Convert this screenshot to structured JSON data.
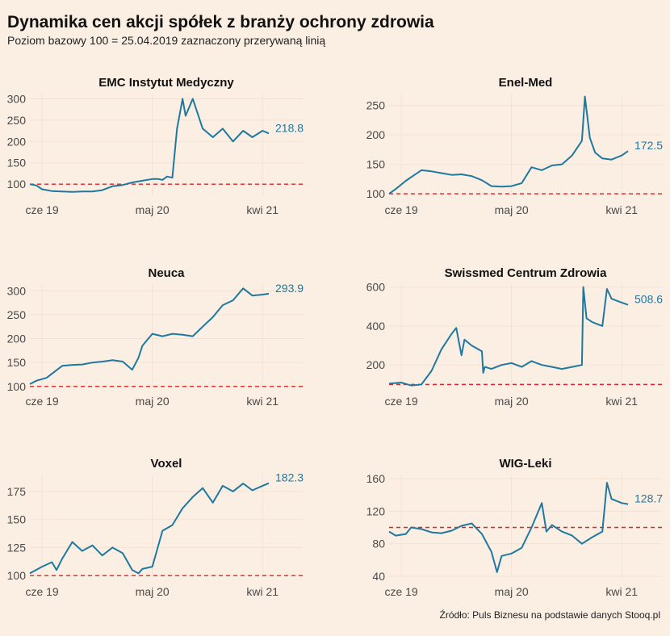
{
  "title": "Dynamika cen akcji spółek z branży ochrony zdrowia",
  "subtitle": "Poziom bazowy 100 = 25.04.2019 zaznaczony przerywaną linią",
  "source": "Źródło: Puls Biznesu na podstawie danych Stooq.pl",
  "colors": {
    "background": "#fbeee2",
    "line": "#1f78a0",
    "baseline": "#d9252b",
    "grid": "#f3e3d4"
  },
  "chart_data": [
    {
      "type": "line",
      "title": "EMC Instytut Medyczny",
      "x_ticks": [
        "cze 19",
        "maj 20",
        "kwi 21"
      ],
      "x_tick_positions": [
        "2019-06-01",
        "2020-05-01",
        "2021-04-01"
      ],
      "xlim": [
        "2019-04-25",
        "2021-08-01"
      ],
      "y_ticks": [
        100,
        150,
        200,
        250,
        300
      ],
      "ylim": [
        72,
        312
      ],
      "baseline": 100,
      "end_label": "218.8",
      "series": [
        {
          "x": [
            "2019-04-25",
            "2019-05-15",
            "2019-06-01",
            "2019-07-01",
            "2019-08-01",
            "2019-09-01",
            "2019-10-01",
            "2019-11-01",
            "2019-12-01",
            "2020-01-01",
            "2020-02-01",
            "2020-03-01",
            "2020-04-01",
            "2020-05-01",
            "2020-05-20",
            "2020-06-01",
            "2020-06-15",
            "2020-07-01",
            "2020-07-15",
            "2020-08-01",
            "2020-08-10",
            "2020-09-01",
            "2020-10-01",
            "2020-11-01",
            "2020-12-01",
            "2021-01-01",
            "2021-02-01",
            "2021-03-01",
            "2021-04-01",
            "2021-04-20"
          ],
          "y": [
            100,
            97,
            88,
            84,
            83,
            82,
            83,
            83,
            86,
            95,
            98,
            104,
            108,
            112,
            112,
            110,
            118,
            115,
            230,
            300,
            260,
            300,
            230,
            210,
            230,
            200,
            225,
            210,
            225,
            218.8
          ]
        }
      ]
    },
    {
      "type": "line",
      "title": "Enel-Med",
      "x_ticks": [
        "cze 19",
        "maj 20",
        "kwi 21"
      ],
      "x_tick_positions": [
        "2019-06-01",
        "2020-05-01",
        "2021-04-01"
      ],
      "xlim": [
        "2019-04-25",
        "2021-08-01"
      ],
      "y_ticks": [
        100,
        150,
        200,
        250
      ],
      "ylim": [
        96,
        270
      ],
      "baseline": 100,
      "end_label": "172.5",
      "series": [
        {
          "x": [
            "2019-04-25",
            "2019-05-15",
            "2019-06-15",
            "2019-08-01",
            "2019-09-01",
            "2019-10-01",
            "2019-11-01",
            "2019-12-01",
            "2020-01-01",
            "2020-02-01",
            "2020-03-01",
            "2020-04-01",
            "2020-05-01",
            "2020-06-01",
            "2020-07-01",
            "2020-08-01",
            "2020-09-01",
            "2020-10-01",
            "2020-11-01",
            "2020-12-01",
            "2020-12-10",
            "2020-12-25",
            "2021-01-10",
            "2021-02-01",
            "2021-03-01",
            "2021-04-01",
            "2021-04-20"
          ],
          "y": [
            100,
            108,
            122,
            140,
            138,
            135,
            132,
            133,
            130,
            123,
            113,
            112,
            113,
            118,
            145,
            140,
            148,
            150,
            165,
            190,
            265,
            195,
            170,
            160,
            158,
            165,
            172.5
          ]
        }
      ]
    },
    {
      "type": "line",
      "title": "Neuca",
      "x_ticks": [
        "cze 19",
        "maj 20",
        "kwi 21"
      ],
      "x_tick_positions": [
        "2019-06-01",
        "2020-05-01",
        "2021-04-01"
      ],
      "xlim": [
        "2019-04-25",
        "2021-08-01"
      ],
      "y_ticks": [
        100,
        150,
        200,
        250,
        300
      ],
      "ylim": [
        98,
        314
      ],
      "baseline": 100,
      "end_label": "293.9",
      "series": [
        {
          "x": [
            "2019-04-25",
            "2019-05-15",
            "2019-06-15",
            "2019-08-01",
            "2019-09-01",
            "2019-10-01",
            "2019-11-01",
            "2019-12-01",
            "2020-01-01",
            "2020-02-01",
            "2020-03-01",
            "2020-03-20",
            "2020-04-01",
            "2020-05-01",
            "2020-06-01",
            "2020-07-01",
            "2020-08-01",
            "2020-09-01",
            "2020-10-01",
            "2020-11-01",
            "2020-12-01",
            "2021-01-01",
            "2021-02-01",
            "2021-03-01",
            "2021-04-01",
            "2021-04-20"
          ],
          "y": [
            105,
            112,
            118,
            143,
            145,
            146,
            150,
            152,
            155,
            152,
            135,
            160,
            185,
            210,
            205,
            210,
            208,
            205,
            225,
            245,
            270,
            280,
            305,
            290,
            292,
            293.9
          ]
        }
      ]
    },
    {
      "type": "line",
      "title": "Swissmed Centrum Zdrowia",
      "x_ticks": [
        "cze 19",
        "maj 20",
        "kwi 21"
      ],
      "x_tick_positions": [
        "2019-06-01",
        "2020-05-01",
        "2021-04-01"
      ],
      "xlim": [
        "2019-04-25",
        "2021-08-01"
      ],
      "y_ticks": [
        200,
        400,
        600
      ],
      "ylim": [
        85,
        615
      ],
      "baseline": 100,
      "end_label": "508.6",
      "series": [
        {
          "x": [
            "2019-04-25",
            "2019-06-01",
            "2019-07-01",
            "2019-08-01",
            "2019-09-01",
            "2019-10-01",
            "2019-11-01",
            "2019-11-15",
            "2019-12-01",
            "2019-12-10",
            "2020-01-01",
            "2020-02-01",
            "2020-02-05",
            "2020-02-10",
            "2020-03-01",
            "2020-04-01",
            "2020-05-01",
            "2020-06-01",
            "2020-07-01",
            "2020-08-01",
            "2020-09-01",
            "2020-10-01",
            "2020-11-01",
            "2020-12-01",
            "2020-12-05",
            "2020-12-15",
            "2021-01-01",
            "2021-02-01",
            "2021-02-15",
            "2021-03-01",
            "2021-04-01",
            "2021-04-20"
          ],
          "y": [
            105,
            110,
            95,
            100,
            170,
            280,
            360,
            390,
            250,
            330,
            300,
            270,
            160,
            190,
            180,
            200,
            210,
            190,
            220,
            200,
            190,
            180,
            190,
            200,
            600,
            440,
            420,
            400,
            590,
            540,
            520,
            508.6
          ]
        }
      ]
    },
    {
      "type": "line",
      "title": "Voxel",
      "x_ticks": [
        "cze 19",
        "maj 20",
        "kwi 21"
      ],
      "x_tick_positions": [
        "2019-06-01",
        "2020-05-01",
        "2021-04-01"
      ],
      "xlim": [
        "2019-04-25",
        "2021-08-01"
      ],
      "y_ticks": [
        100,
        125,
        150,
        175
      ],
      "ylim": [
        98,
        190
      ],
      "baseline": 100,
      "end_label": "182.3",
      "series": [
        {
          "x": [
            "2019-04-25",
            "2019-06-01",
            "2019-07-01",
            "2019-07-15",
            "2019-08-01",
            "2019-09-01",
            "2019-10-01",
            "2019-11-01",
            "2019-12-01",
            "2020-01-01",
            "2020-02-01",
            "2020-03-01",
            "2020-03-20",
            "2020-04-01",
            "2020-05-01",
            "2020-06-01",
            "2020-07-01",
            "2020-08-01",
            "2020-09-01",
            "2020-10-01",
            "2020-11-01",
            "2020-12-01",
            "2021-01-01",
            "2021-02-01",
            "2021-03-01",
            "2021-04-01",
            "2021-04-20"
          ],
          "y": [
            102,
            108,
            112,
            105,
            115,
            130,
            122,
            127,
            118,
            125,
            120,
            105,
            102,
            106,
            108,
            140,
            145,
            160,
            170,
            178,
            165,
            180,
            175,
            182,
            176,
            180,
            182.3
          ]
        }
      ]
    },
    {
      "type": "line",
      "title": "WIG-Leki",
      "x_ticks": [
        "cze 19",
        "maj 20",
        "kwi 21"
      ],
      "x_tick_positions": [
        "2019-06-01",
        "2020-05-01",
        "2021-04-01"
      ],
      "xlim": [
        "2019-04-25",
        "2021-08-01"
      ],
      "y_ticks": [
        40,
        80,
        120,
        160
      ],
      "ylim": [
        38,
        165
      ],
      "baseline": 100,
      "end_label": "128.7",
      "series": [
        {
          "x": [
            "2019-04-25",
            "2019-05-15",
            "2019-06-15",
            "2019-07-01",
            "2019-08-01",
            "2019-09-01",
            "2019-10-01",
            "2019-11-01",
            "2019-12-01",
            "2020-01-01",
            "2020-02-01",
            "2020-03-01",
            "2020-03-18",
            "2020-04-01",
            "2020-05-01",
            "2020-06-01",
            "2020-07-01",
            "2020-08-01",
            "2020-08-15",
            "2020-09-01",
            "2020-10-01",
            "2020-11-01",
            "2020-12-01",
            "2021-01-01",
            "2021-02-01",
            "2021-02-15",
            "2021-03-01",
            "2021-04-01",
            "2021-04-20"
          ],
          "y": [
            95,
            90,
            92,
            100,
            98,
            94,
            93,
            96,
            102,
            105,
            92,
            70,
            45,
            65,
            68,
            75,
            100,
            130,
            95,
            103,
            95,
            90,
            80,
            88,
            95,
            155,
            135,
            130,
            128.7
          ]
        }
      ]
    }
  ]
}
